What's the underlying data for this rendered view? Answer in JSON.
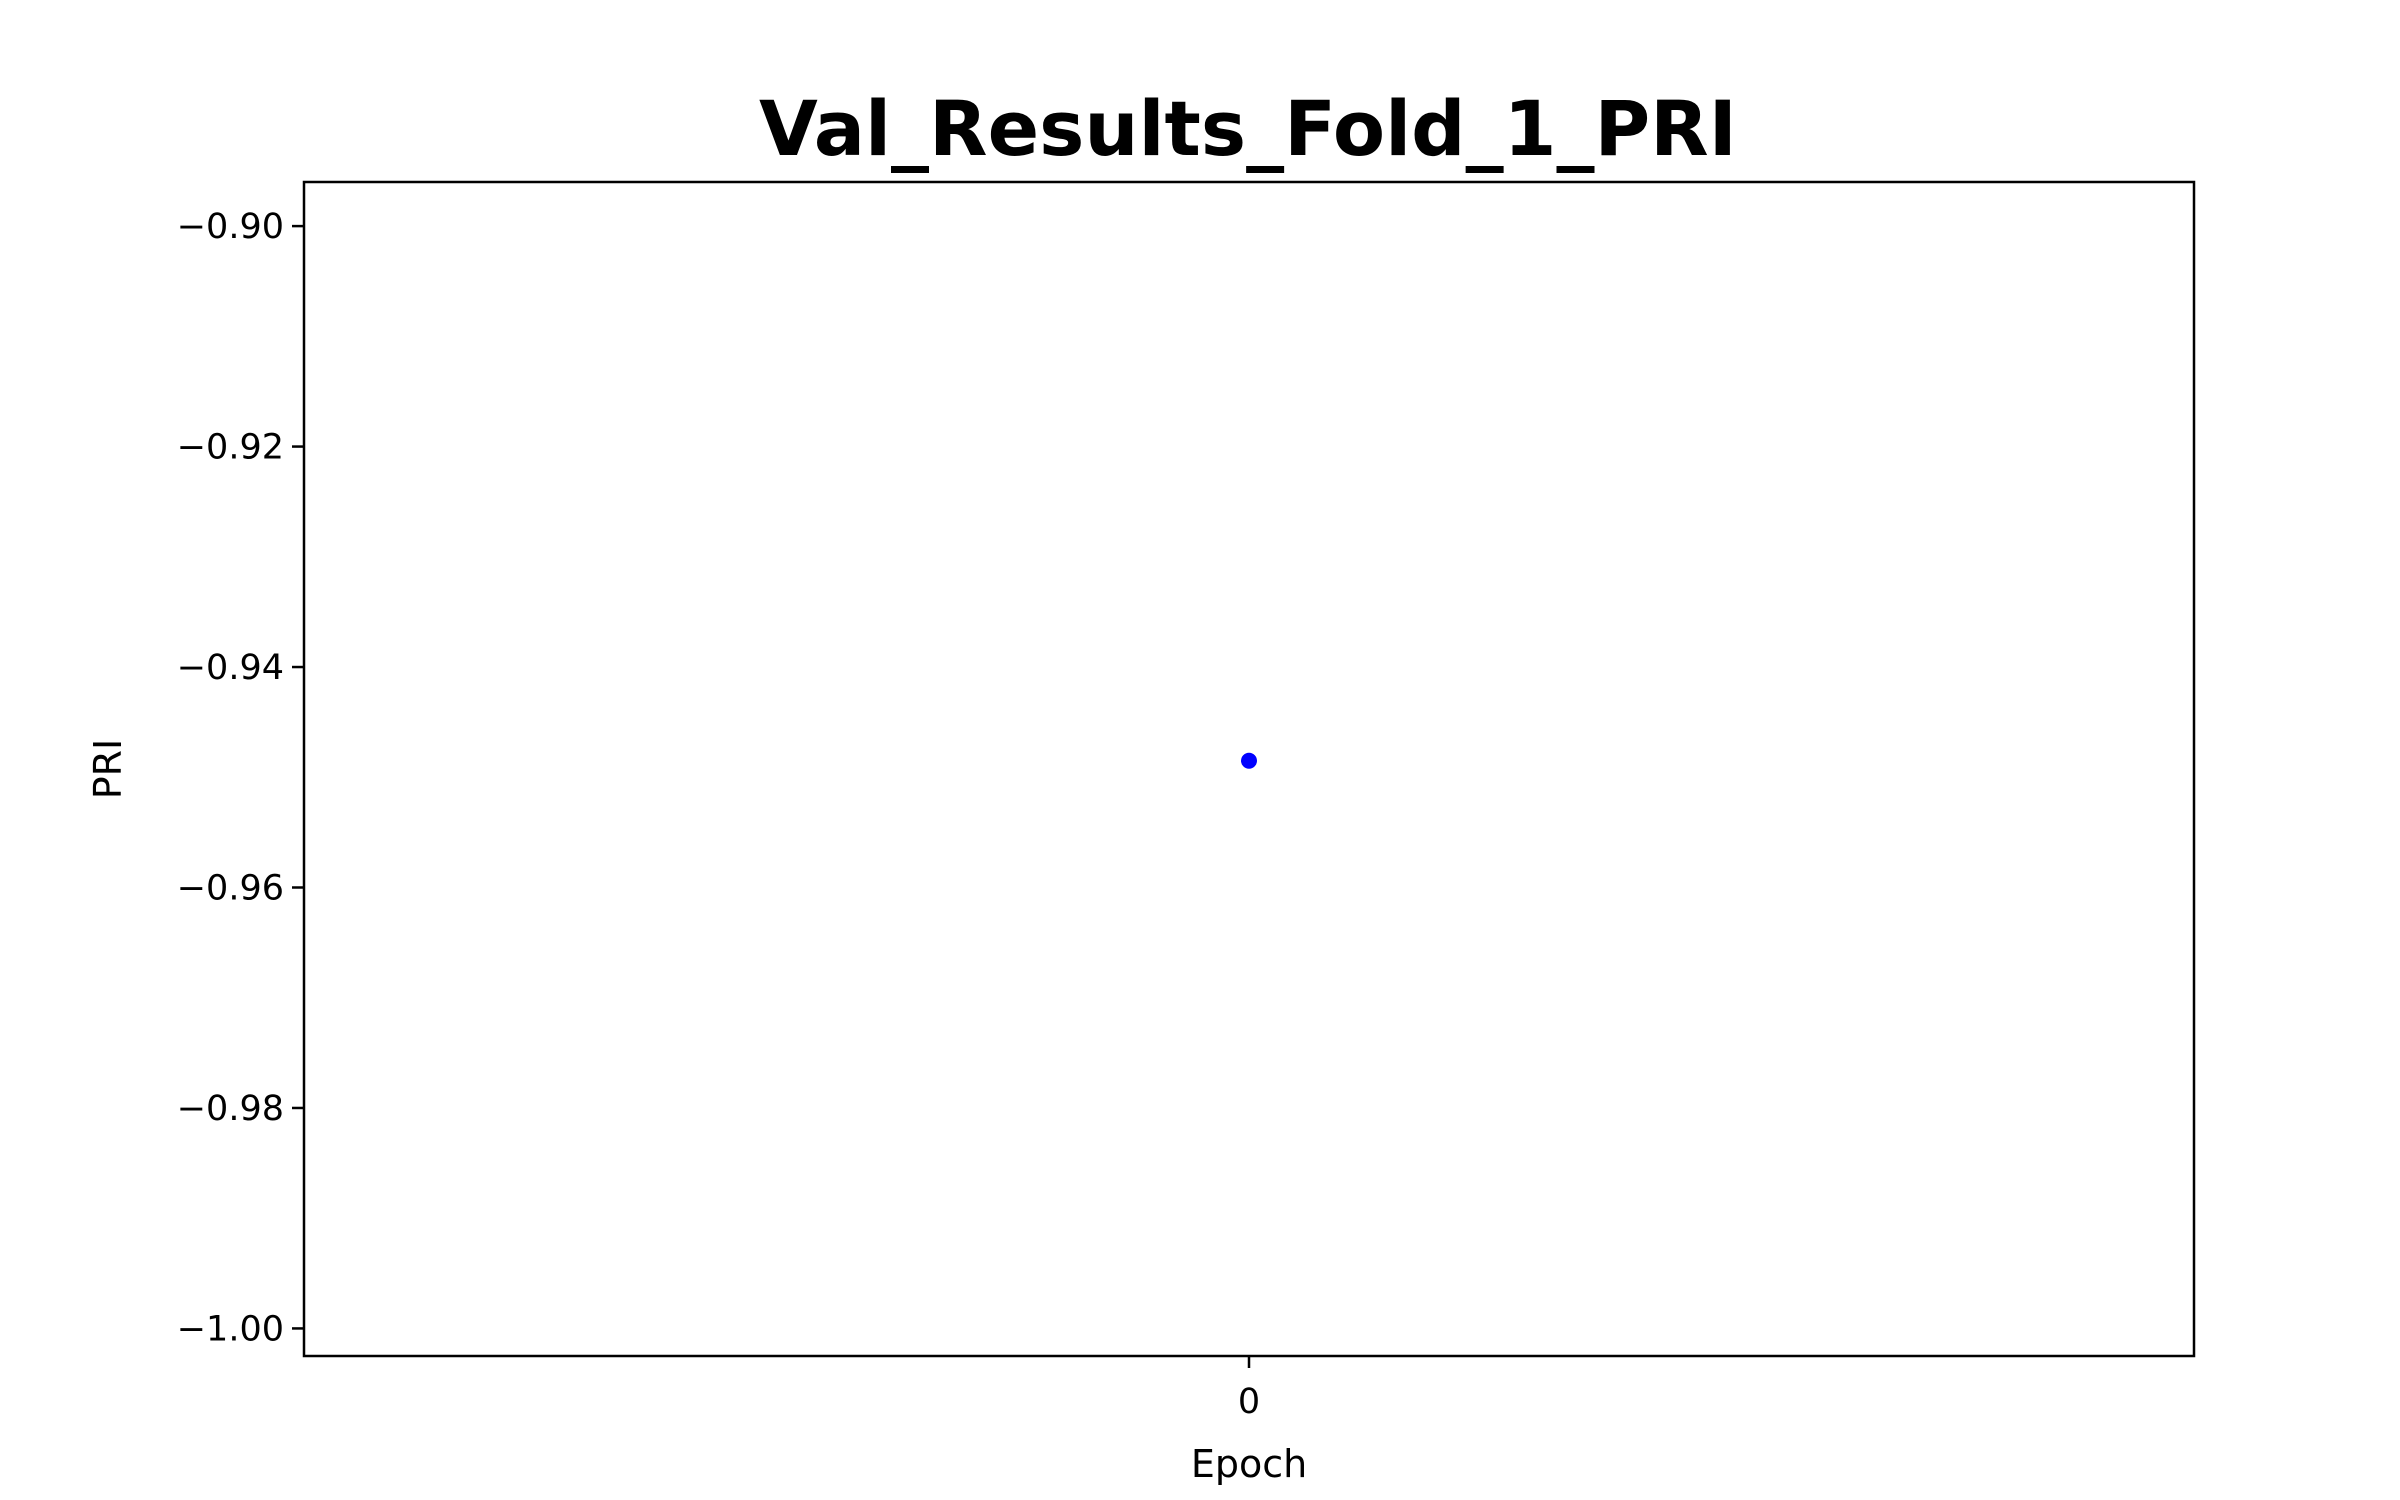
{
  "chart_data": {
    "type": "scatter",
    "title": "Val_Results_Fold_1_PRI",
    "xlabel": "Epoch",
    "ylabel": "PRI",
    "x": [
      0
    ],
    "y": [
      -0.9485
    ],
    "xlim": [
      -0.05,
      0.05
    ],
    "ylim": [
      -1.0025,
      -0.896
    ],
    "xticks": [
      0
    ],
    "xtick_labels": [
      "0"
    ],
    "yticks": [
      -0.9,
      -0.92,
      -0.94,
      -0.96,
      -0.98,
      -1.0
    ],
    "ytick_labels": [
      "−0.90",
      "−0.92",
      "−0.94",
      "−0.96",
      "−0.98",
      "−1.00"
    ],
    "grid": false,
    "legend": "none",
    "marker_color": "#0000ff"
  }
}
